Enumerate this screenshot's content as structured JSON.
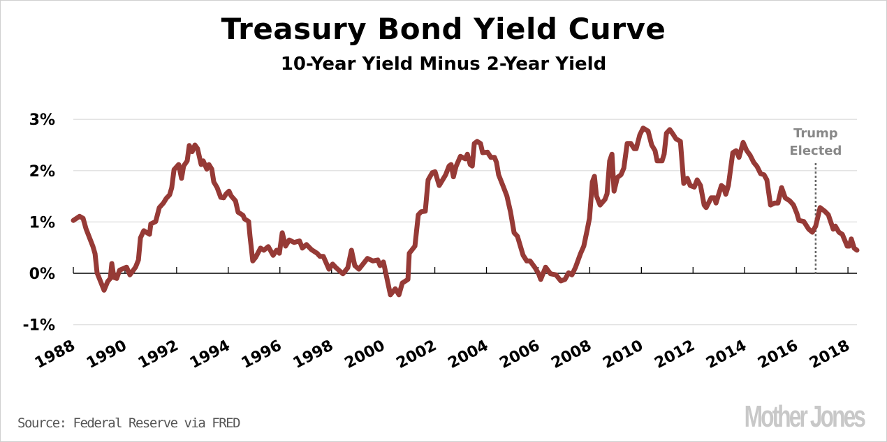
{
  "chart_data": {
    "type": "line",
    "title": "Treasury Bond Yield Curve",
    "subtitle": "10-Year Yield Minus 2-Year Yield",
    "xlabel": "",
    "ylabel": "",
    "xlim": [
      1988,
      2018.35
    ],
    "ylim": [
      -1,
      3
    ],
    "grid": true,
    "y_ticks": [
      3,
      2,
      1,
      0,
      -1
    ],
    "y_tick_labels": [
      "3%",
      "2%",
      "1%",
      "0%",
      "-1%"
    ],
    "x_ticks": [
      1988,
      1990,
      1992,
      1994,
      1996,
      1998,
      2000,
      2002,
      2004,
      2006,
      2008,
      2010,
      2012,
      2014,
      2016,
      2018
    ],
    "x_tick_labels": [
      "1988",
      "1990",
      "1992",
      "1994",
      "1996",
      "1998",
      "2000",
      "2002",
      "2004",
      "2006",
      "2008",
      "2010",
      "2012",
      "2014",
      "2016",
      "2018"
    ],
    "line_color": "#963a36",
    "series": [
      {
        "name": "10-Year minus 2-Year Yield (%)",
        "points": [
          [
            1988.0,
            1.03
          ],
          [
            1988.24,
            1.11
          ],
          [
            1988.38,
            1.07
          ],
          [
            1988.49,
            0.87
          ],
          [
            1988.76,
            0.52
          ],
          [
            1988.84,
            0.38
          ],
          [
            1988.92,
            0.01
          ],
          [
            1989.19,
            -0.33
          ],
          [
            1989.33,
            -0.16
          ],
          [
            1989.43,
            -0.1
          ],
          [
            1989.49,
            0.19
          ],
          [
            1989.57,
            -0.08
          ],
          [
            1989.68,
            -0.1
          ],
          [
            1989.79,
            0.06
          ],
          [
            1990.06,
            0.12
          ],
          [
            1990.19,
            -0.03
          ],
          [
            1990.41,
            0.12
          ],
          [
            1990.52,
            0.26
          ],
          [
            1990.6,
            0.69
          ],
          [
            1990.73,
            0.83
          ],
          [
            1990.95,
            0.76
          ],
          [
            1991.0,
            0.96
          ],
          [
            1991.19,
            1.01
          ],
          [
            1991.33,
            1.28
          ],
          [
            1991.49,
            1.37
          ],
          [
            1991.6,
            1.46
          ],
          [
            1991.73,
            1.53
          ],
          [
            1991.81,
            1.67
          ],
          [
            1991.9,
            2.02
          ],
          [
            1992.08,
            2.12
          ],
          [
            1992.19,
            1.85
          ],
          [
            1992.27,
            2.09
          ],
          [
            1992.41,
            2.19
          ],
          [
            1992.49,
            2.49
          ],
          [
            1992.6,
            2.37
          ],
          [
            1992.71,
            2.5
          ],
          [
            1992.81,
            2.43
          ],
          [
            1992.95,
            2.12
          ],
          [
            1993.03,
            2.19
          ],
          [
            1993.17,
            2.03
          ],
          [
            1993.25,
            2.12
          ],
          [
            1993.36,
            2.03
          ],
          [
            1993.44,
            1.78
          ],
          [
            1993.57,
            1.67
          ],
          [
            1993.71,
            1.48
          ],
          [
            1993.82,
            1.47
          ],
          [
            1993.92,
            1.55
          ],
          [
            1994.03,
            1.6
          ],
          [
            1994.11,
            1.51
          ],
          [
            1994.28,
            1.41
          ],
          [
            1994.38,
            1.19
          ],
          [
            1994.57,
            1.13
          ],
          [
            1994.63,
            1.06
          ],
          [
            1994.79,
            1.01
          ],
          [
            1994.84,
            0.73
          ],
          [
            1994.95,
            0.24
          ],
          [
            1995.06,
            0.31
          ],
          [
            1995.25,
            0.49
          ],
          [
            1995.38,
            0.45
          ],
          [
            1995.55,
            0.52
          ],
          [
            1995.74,
            0.35
          ],
          [
            1995.87,
            0.45
          ],
          [
            1995.98,
            0.39
          ],
          [
            1996.09,
            0.79
          ],
          [
            1996.22,
            0.53
          ],
          [
            1996.36,
            0.65
          ],
          [
            1996.55,
            0.6
          ],
          [
            1996.76,
            0.63
          ],
          [
            1996.87,
            0.49
          ],
          [
            1997.03,
            0.56
          ],
          [
            1997.22,
            0.46
          ],
          [
            1997.44,
            0.39
          ],
          [
            1997.55,
            0.33
          ],
          [
            1997.68,
            0.33
          ],
          [
            1997.9,
            0.08
          ],
          [
            1998.04,
            0.18
          ],
          [
            1998.17,
            0.11
          ],
          [
            1998.44,
            -0.01
          ],
          [
            1998.63,
            0.11
          ],
          [
            1998.77,
            0.45
          ],
          [
            1998.9,
            0.15
          ],
          [
            1999.06,
            0.08
          ],
          [
            1999.39,
            0.29
          ],
          [
            1999.6,
            0.24
          ],
          [
            1999.79,
            0.26
          ],
          [
            1999.88,
            0.15
          ],
          [
            2000.01,
            0.22
          ],
          [
            2000.28,
            -0.42
          ],
          [
            2000.47,
            -0.3
          ],
          [
            2000.61,
            -0.42
          ],
          [
            2000.74,
            -0.19
          ],
          [
            2000.96,
            -0.12
          ],
          [
            2001.01,
            0.39
          ],
          [
            2001.23,
            0.53
          ],
          [
            2001.36,
            1.14
          ],
          [
            2001.47,
            1.2
          ],
          [
            2001.63,
            1.21
          ],
          [
            2001.74,
            1.82
          ],
          [
            2001.9,
            1.96
          ],
          [
            2002.01,
            1.98
          ],
          [
            2002.17,
            1.71
          ],
          [
            2002.42,
            1.92
          ],
          [
            2002.55,
            2.09
          ],
          [
            2002.63,
            2.12
          ],
          [
            2002.72,
            1.88
          ],
          [
            2002.82,
            2.08
          ],
          [
            2002.99,
            2.28
          ],
          [
            2003.18,
            2.23
          ],
          [
            2003.26,
            2.32
          ],
          [
            2003.37,
            2.12
          ],
          [
            2003.45,
            2.09
          ],
          [
            2003.53,
            2.53
          ],
          [
            2003.64,
            2.57
          ],
          [
            2003.77,
            2.53
          ],
          [
            2003.85,
            2.35
          ],
          [
            2004.04,
            2.36
          ],
          [
            2004.17,
            2.26
          ],
          [
            2004.31,
            2.26
          ],
          [
            2004.39,
            2.16
          ],
          [
            2004.47,
            1.92
          ],
          [
            2004.66,
            1.68
          ],
          [
            2004.79,
            1.51
          ],
          [
            2004.93,
            1.2
          ],
          [
            2005.07,
            0.79
          ],
          [
            2005.2,
            0.72
          ],
          [
            2005.42,
            0.35
          ],
          [
            2005.56,
            0.24
          ],
          [
            2005.69,
            0.24
          ],
          [
            2005.88,
            0.11
          ],
          [
            2006.02,
            -0.01
          ],
          [
            2006.1,
            -0.12
          ],
          [
            2006.29,
            0.12
          ],
          [
            2006.48,
            -0.01
          ],
          [
            2006.69,
            -0.03
          ],
          [
            2006.88,
            -0.15
          ],
          [
            2007.04,
            -0.12
          ],
          [
            2007.18,
            0.01
          ],
          [
            2007.31,
            -0.03
          ],
          [
            2007.45,
            0.12
          ],
          [
            2007.64,
            0.38
          ],
          [
            2007.77,
            0.53
          ],
          [
            2007.91,
            0.87
          ],
          [
            2007.99,
            1.07
          ],
          [
            2008.1,
            1.78
          ],
          [
            2008.18,
            1.89
          ],
          [
            2008.26,
            1.51
          ],
          [
            2008.4,
            1.33
          ],
          [
            2008.59,
            1.44
          ],
          [
            2008.67,
            1.55
          ],
          [
            2008.77,
            2.19
          ],
          [
            2008.86,
            2.32
          ],
          [
            2008.94,
            1.6
          ],
          [
            2009.07,
            1.87
          ],
          [
            2009.21,
            1.92
          ],
          [
            2009.32,
            2.05
          ],
          [
            2009.45,
            2.53
          ],
          [
            2009.59,
            2.53
          ],
          [
            2009.72,
            2.43
          ],
          [
            2009.8,
            2.43
          ],
          [
            2009.94,
            2.7
          ],
          [
            2010.07,
            2.83
          ],
          [
            2010.26,
            2.77
          ],
          [
            2010.4,
            2.5
          ],
          [
            2010.53,
            2.39
          ],
          [
            2010.61,
            2.19
          ],
          [
            2010.8,
            2.19
          ],
          [
            2010.88,
            2.32
          ],
          [
            2010.97,
            2.73
          ],
          [
            2011.1,
            2.8
          ],
          [
            2011.24,
            2.7
          ],
          [
            2011.34,
            2.62
          ],
          [
            2011.51,
            2.57
          ],
          [
            2011.64,
            1.75
          ],
          [
            2011.78,
            1.85
          ],
          [
            2011.89,
            1.71
          ],
          [
            2012.05,
            1.68
          ],
          [
            2012.16,
            1.82
          ],
          [
            2012.29,
            1.71
          ],
          [
            2012.43,
            1.33
          ],
          [
            2012.51,
            1.28
          ],
          [
            2012.7,
            1.47
          ],
          [
            2012.83,
            1.47
          ],
          [
            2012.89,
            1.37
          ],
          [
            2013.1,
            1.71
          ],
          [
            2013.18,
            1.68
          ],
          [
            2013.27,
            1.54
          ],
          [
            2013.37,
            1.71
          ],
          [
            2013.54,
            2.35
          ],
          [
            2013.67,
            2.39
          ],
          [
            2013.78,
            2.26
          ],
          [
            2013.94,
            2.55
          ],
          [
            2014.08,
            2.39
          ],
          [
            2014.21,
            2.3
          ],
          [
            2014.35,
            2.16
          ],
          [
            2014.48,
            2.08
          ],
          [
            2014.62,
            1.94
          ],
          [
            2014.75,
            1.92
          ],
          [
            2014.86,
            1.82
          ],
          [
            2015.0,
            1.33
          ],
          [
            2015.16,
            1.37
          ],
          [
            2015.29,
            1.37
          ],
          [
            2015.43,
            1.67
          ],
          [
            2015.57,
            1.47
          ],
          [
            2015.75,
            1.41
          ],
          [
            2015.89,
            1.33
          ],
          [
            2016.02,
            1.17
          ],
          [
            2016.1,
            1.03
          ],
          [
            2016.29,
            1.01
          ],
          [
            2016.48,
            0.86
          ],
          [
            2016.62,
            0.8
          ],
          [
            2016.75,
            0.92
          ],
          [
            2016.92,
            1.28
          ],
          [
            2017.1,
            1.21
          ],
          [
            2017.24,
            1.14
          ],
          [
            2017.43,
            0.86
          ],
          [
            2017.51,
            0.92
          ],
          [
            2017.65,
            0.8
          ],
          [
            2017.78,
            0.76
          ],
          [
            2017.97,
            0.53
          ],
          [
            2018.05,
            0.53
          ],
          [
            2018.13,
            0.67
          ],
          [
            2018.24,
            0.49
          ],
          [
            2018.35,
            0.45
          ]
        ]
      }
    ],
    "annotations": [
      {
        "text_line1": "Trump",
        "text_line2": "Elected",
        "x": 2016.75
      }
    ]
  },
  "source": "Source: Federal Reserve via FRED",
  "logo": "Mother Jones"
}
